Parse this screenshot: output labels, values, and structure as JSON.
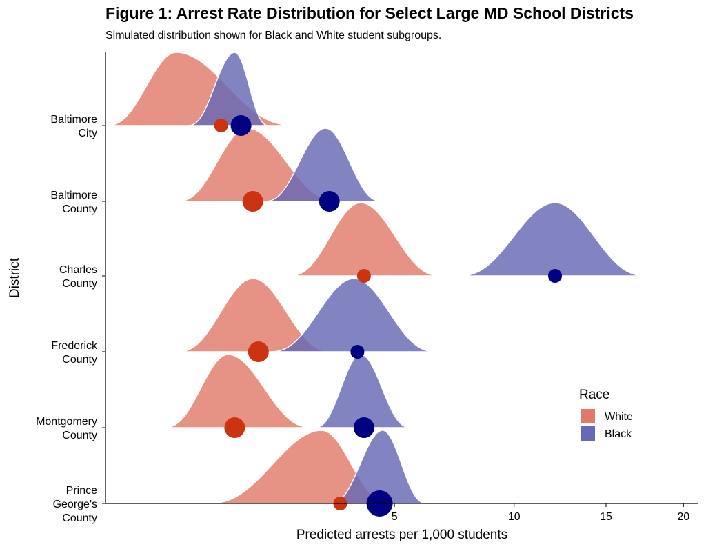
{
  "chart_data": {
    "type": "ridgeline",
    "title": "Figure 1: Arrest Rate Distribution for Select Large MD School Districts",
    "subtitle": "Simulated distribution shown for Black and White student subgroups.",
    "xlabel": "Predicted arrests per 1,000 students",
    "ylabel": "District",
    "x_scale": "sqrt",
    "xlim": [
      0,
      21
    ],
    "x_ticks": [
      5,
      10,
      15,
      20
    ],
    "legend": {
      "title": "Race",
      "position": "right",
      "entries": [
        {
          "name": "White",
          "color": "#E07B6B"
        },
        {
          "name": "Black",
          "color": "#6669B4"
        }
      ]
    },
    "colors": {
      "white_fill": "#E07B6B",
      "black_fill": "#6669B4",
      "white_point": "#CC3311",
      "black_point": "#000080"
    },
    "categories": [
      "Prince George's County",
      "Montgomery County",
      "Frederick County",
      "Charles County",
      "Baltimore County",
      "Baltimore City"
    ],
    "category_labels": [
      [
        "Prince",
        "George's",
        "County"
      ],
      [
        "Montgomery",
        "County"
      ],
      [
        "Frederick",
        "County"
      ],
      [
        "Charles",
        "County"
      ],
      [
        "Baltimore",
        "County"
      ],
      [
        "Baltimore",
        "City"
      ]
    ],
    "series": [
      {
        "name": "White",
        "distributions": [
          {
            "district": "Prince George's County",
            "min": 0.6,
            "mode": 2.8,
            "max": 4.9,
            "point": 3.3,
            "point_size": 1
          },
          {
            "district": "Montgomery County",
            "min": 0.2,
            "mode": 0.9,
            "max": 2.6,
            "point": 1.0,
            "point_size": 2
          },
          {
            "district": "Frederick County",
            "min": 0.3,
            "mode": 1.3,
            "max": 3.1,
            "point": 1.4,
            "point_size": 2
          },
          {
            "district": "Charles County",
            "min": 2.0,
            "mode": 3.9,
            "max": 6.8,
            "point": 4.0,
            "point_size": 1
          },
          {
            "district": "Baltimore County",
            "min": 0.3,
            "mode": 1.2,
            "max": 3.3,
            "point": 1.3,
            "point_size": 2
          },
          {
            "district": "Baltimore City",
            "min": 0.0,
            "mode": 0.3,
            "max": 2.2,
            "point": 0.8,
            "point_size": 1
          }
        ]
      },
      {
        "name": "Black",
        "distributions": [
          {
            "district": "Prince George's County",
            "min": 3.0,
            "mode": 4.6,
            "max": 6.2,
            "point": 4.5,
            "point_size": 3
          },
          {
            "district": "Montgomery County",
            "min": 2.6,
            "mode": 3.9,
            "max": 5.6,
            "point": 4.0,
            "point_size": 2
          },
          {
            "district": "Frederick County",
            "min": 1.6,
            "mode": 3.7,
            "max": 6.6,
            "point": 3.8,
            "point_size": 1
          },
          {
            "district": "Charles County",
            "min": 7.4,
            "mode": 12.1,
            "max": 17.6,
            "point": 12.1,
            "point_size": 1
          },
          {
            "district": "Baltimore County",
            "min": 1.5,
            "mode": 2.9,
            "max": 4.6,
            "point": 3.0,
            "point_size": 2
          },
          {
            "district": "Baltimore City",
            "min": 0.4,
            "mode": 1.0,
            "max": 1.6,
            "point": 1.1,
            "point_size": 2
          }
        ]
      }
    ]
  }
}
